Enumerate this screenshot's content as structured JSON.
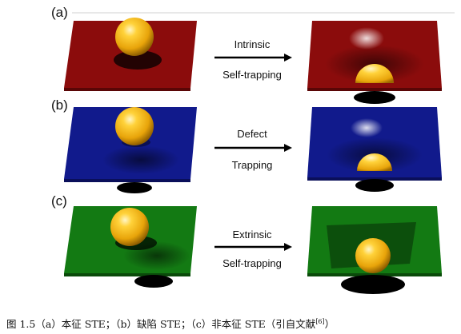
{
  "rows": [
    {
      "label": "(a)",
      "arrow_top": "Intrinsic",
      "arrow_bottom": "Self-trapping",
      "color": "#8b0c0c",
      "color_light": "#a81818",
      "color_dark": "#5a0606"
    },
    {
      "label": "(b)",
      "arrow_top": "Defect",
      "arrow_bottom": "Trapping",
      "color": "#111a8c",
      "color_light": "#1f2aa8",
      "color_dark": "#0a0f5a"
    },
    {
      "label": "(c)",
      "arrow_top": "Extrinsic",
      "arrow_bottom": "Self-trapping",
      "color": "#137a13",
      "color_light": "#1e9a1e",
      "color_dark": "#0a4a0a"
    }
  ],
  "ball_color": "#f2b511",
  "caption": {
    "main": "图 1.5（a）本征 STE；（b）缺陷 STE；（c）非本征 STE（引自文献",
    "ref": "[6]",
    "end": "）"
  }
}
